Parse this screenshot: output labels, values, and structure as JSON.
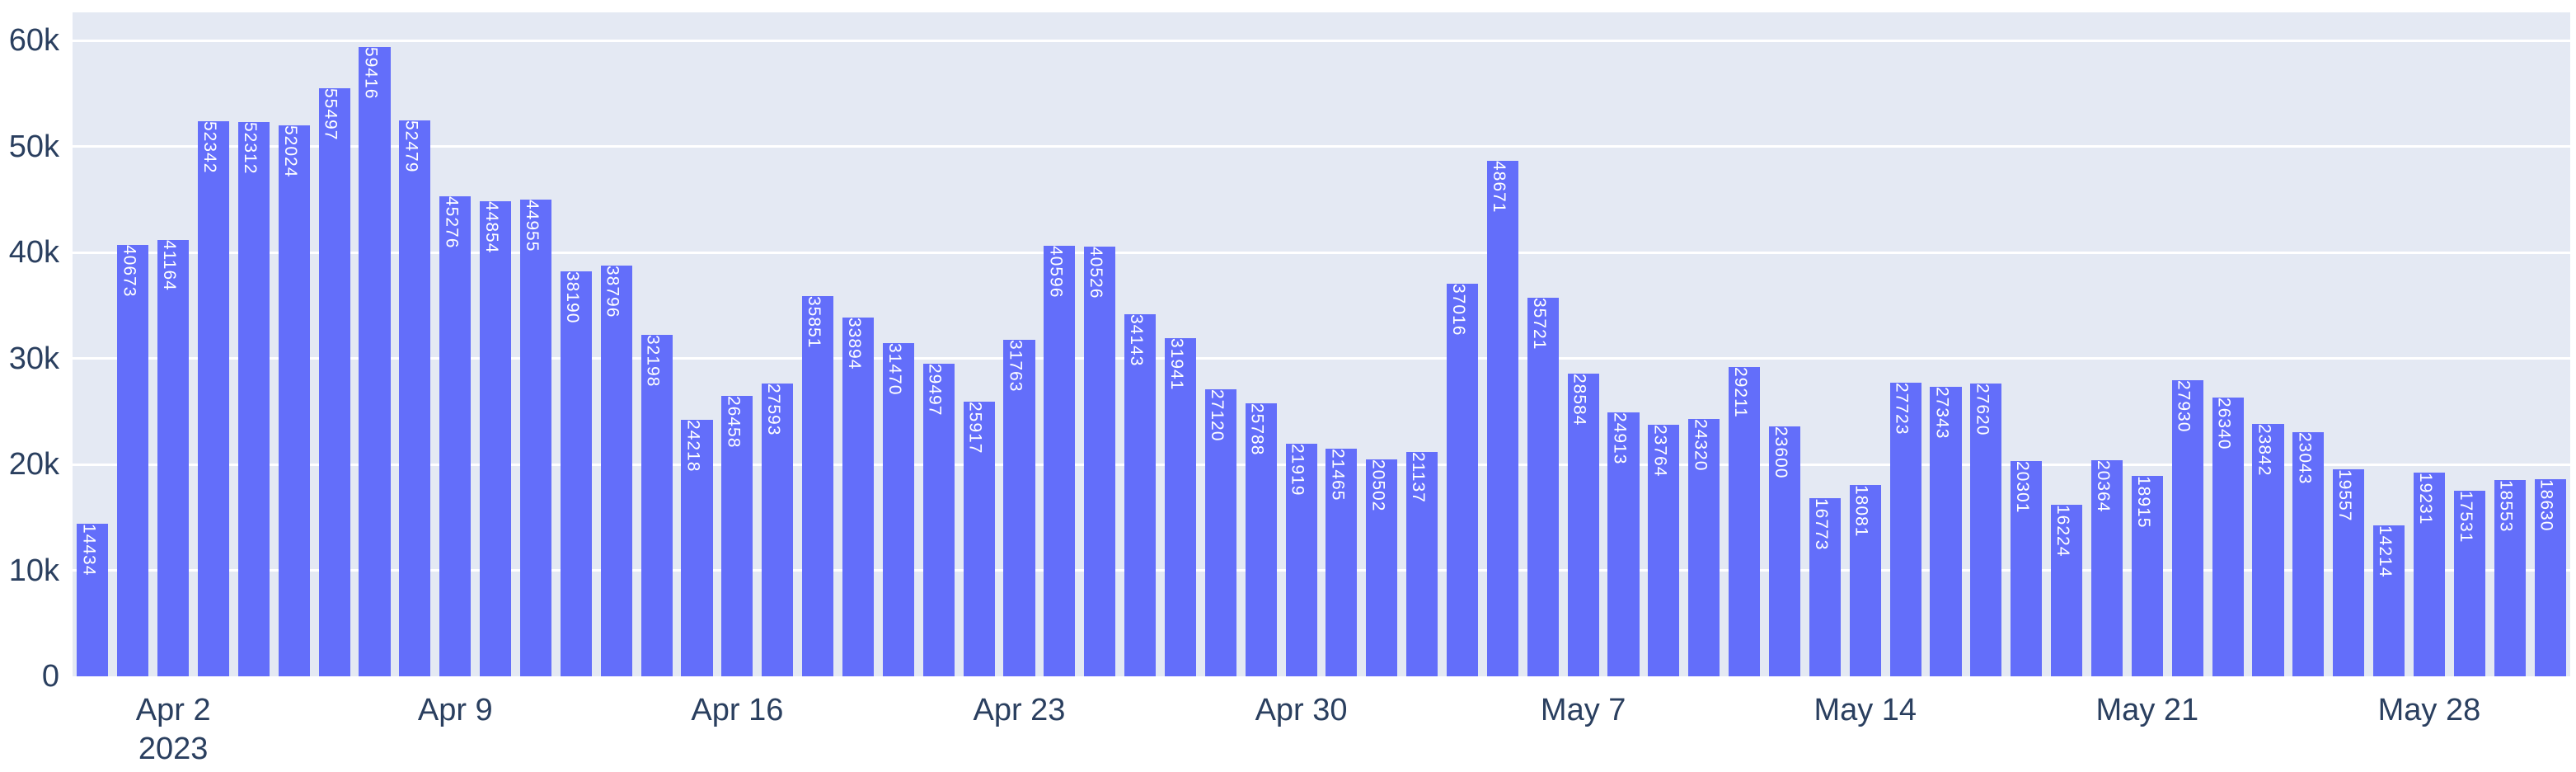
{
  "chart_data": {
    "type": "bar",
    "title": "",
    "xlabel": "",
    "ylabel": "",
    "grid": true,
    "legend": false,
    "ylim": [
      0,
      62650
    ],
    "dates": [
      "2023-03-31",
      "2023-04-01",
      "2023-04-02",
      "2023-04-03",
      "2023-04-04",
      "2023-04-05",
      "2023-04-06",
      "2023-04-07",
      "2023-04-08",
      "2023-04-09",
      "2023-04-10",
      "2023-04-11",
      "2023-04-12",
      "2023-04-13",
      "2023-04-14",
      "2023-04-15",
      "2023-04-16",
      "2023-04-17",
      "2023-04-18",
      "2023-04-19",
      "2023-04-20",
      "2023-04-21",
      "2023-04-22",
      "2023-04-23",
      "2023-04-24",
      "2023-04-25",
      "2023-04-26",
      "2023-04-27",
      "2023-04-28",
      "2023-04-29",
      "2023-04-30",
      "2023-05-01",
      "2023-05-02",
      "2023-05-03",
      "2023-05-04",
      "2023-05-05",
      "2023-05-06",
      "2023-05-07",
      "2023-05-08",
      "2023-05-09",
      "2023-05-10",
      "2023-05-11",
      "2023-05-12",
      "2023-05-13",
      "2023-05-14",
      "2023-05-15",
      "2023-05-16",
      "2023-05-17",
      "2023-05-18",
      "2023-05-19",
      "2023-05-20",
      "2023-05-21",
      "2023-05-22",
      "2023-05-23",
      "2023-05-24",
      "2023-05-25",
      "2023-05-26",
      "2023-05-27",
      "2023-05-28",
      "2023-05-29",
      "2023-05-30",
      "2023-05-31"
    ],
    "values": [
      14434,
      40673,
      41164,
      52342,
      52312,
      52024,
      55497,
      59416,
      52479,
      45276,
      44854,
      44955,
      38190,
      38796,
      32198,
      24218,
      26458,
      27593,
      35851,
      33894,
      31470,
      29497,
      25917,
      31763,
      40596,
      40526,
      34143,
      31941,
      27120,
      25788,
      21919,
      21465,
      20502,
      21137,
      37016,
      48671,
      35721,
      28584,
      24913,
      23764,
      24320,
      29211,
      23600,
      16773,
      18081,
      27723,
      27343,
      27620,
      20301,
      16224,
      20364,
      18915,
      27930,
      26340,
      23842,
      23043,
      19557,
      14214,
      19231,
      17531,
      18553,
      18630
    ],
    "x_ticks": [
      {
        "index": 2,
        "label": "Apr 2",
        "sublabel": "2023"
      },
      {
        "index": 9,
        "label": "Apr 9"
      },
      {
        "index": 16,
        "label": "Apr 16"
      },
      {
        "index": 23,
        "label": "Apr 23"
      },
      {
        "index": 30,
        "label": "Apr 30"
      },
      {
        "index": 37,
        "label": "May 7"
      },
      {
        "index": 44,
        "label": "May 14"
      },
      {
        "index": 51,
        "label": "May 21"
      },
      {
        "index": 58,
        "label": "May 28"
      }
    ],
    "y_ticks": [
      {
        "value": 0,
        "label": "0"
      },
      {
        "value": 10000,
        "label": "10k"
      },
      {
        "value": 20000,
        "label": "20k"
      },
      {
        "value": 30000,
        "label": "30k"
      },
      {
        "value": 40000,
        "label": "40k"
      },
      {
        "value": 50000,
        "label": "50k"
      },
      {
        "value": 60000,
        "label": "60k"
      }
    ],
    "colors": {
      "bar": "#636EFA",
      "plot_background": "#E4E9F3",
      "gridline": "#FFFFFF",
      "tick_text": "#2A3F5F",
      "bar_label_text": "#FFFFFF",
      "page_background": "#FFFFFF"
    }
  }
}
